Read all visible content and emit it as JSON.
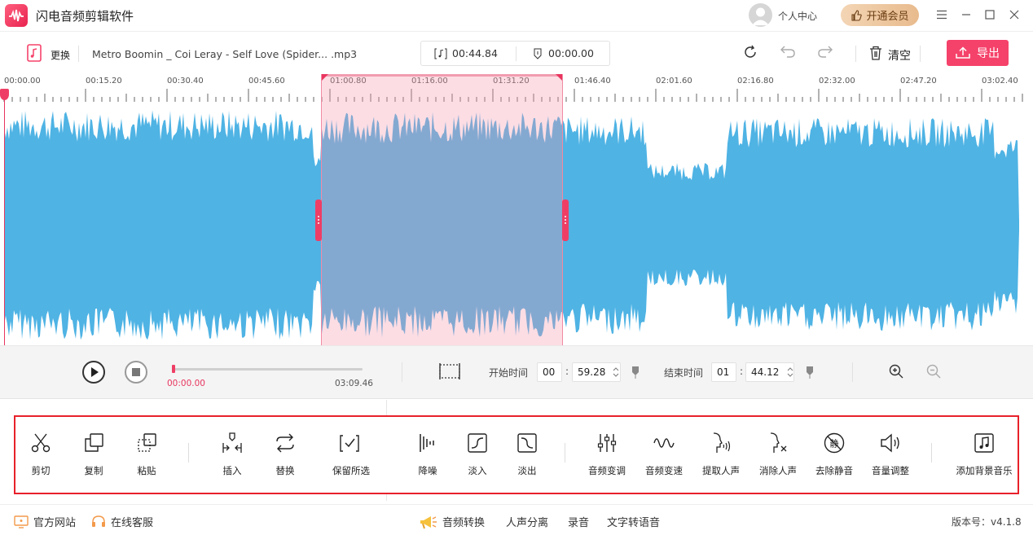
{
  "app": {
    "title": "闪电音频剪辑软件"
  },
  "header": {
    "user_center": "个人中心",
    "vip_label": "开通会员"
  },
  "toolbar": {
    "replace_label": "更换",
    "filename": "Metro Boomin _ Coi Leray - Self Love (Spider... .mp3",
    "selection_duration": "00:44.84",
    "cursor_time": "00:00.00",
    "clear_label": "清空",
    "export_label": "导出"
  },
  "ruler": {
    "ticks": [
      "00:00.00",
      "00:15.20",
      "00:30.40",
      "00:45.60",
      "01:00.80",
      "01:16.00",
      "01:31.20",
      "01:46.40",
      "02:01.60",
      "02:16.80",
      "02:32.00",
      "02:47.20",
      "03:02.40"
    ]
  },
  "waveform": {
    "color": "#4fb3e4",
    "selection_color": "#f5a8bb",
    "selection_start": "00:59.28",
    "selection_end": "01:44.12",
    "total": "03:09.46"
  },
  "player": {
    "current_time": "00:00.00",
    "total_time": "03:09.46",
    "progress": 0.0,
    "start_label": "开始时间",
    "start_min": "00",
    "start_sec": "59.28",
    "end_label": "结束时间",
    "end_min": "01",
    "end_sec": "44.12"
  },
  "functions": {
    "cut": "剪切",
    "copy": "复制",
    "paste": "粘贴",
    "insert": "插入",
    "replace": "替换",
    "keep_selected": "保留所选",
    "denoise": "降噪",
    "fade_in": "淡入",
    "fade_out": "淡出",
    "pitch": "音频变调",
    "speed": "音频变速",
    "extract_vocals": "提取人声",
    "remove_vocals": "消除人声",
    "remove_silence": "去除静音",
    "volume": "音量调整",
    "add_bgm": "添加背景音乐"
  },
  "footer": {
    "official_site": "官方网站",
    "online_service": "在线客服",
    "audio_convert": "音频转换",
    "vocal_separate": "人声分离",
    "record": "录音",
    "text_to_speech": "文字转语音",
    "version": "版本号：v4.1.8"
  },
  "colors": {
    "accent": "#f5426a",
    "panel_border": "#e8212b",
    "vip": "#e8bb8d"
  }
}
